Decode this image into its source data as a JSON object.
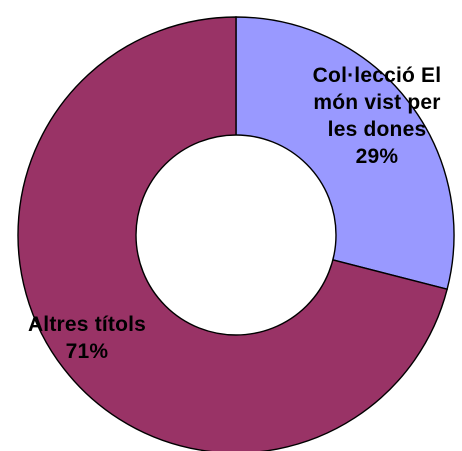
{
  "chart_data": {
    "type": "pie",
    "variant": "donut",
    "title": "",
    "slices": [
      {
        "label_lines": [
          "Col·lecció El",
          "món vist per",
          "les dones"
        ],
        "percent_label": "29%",
        "value": 29,
        "color": "#9999ff"
      },
      {
        "label_lines": [
          "Altres títols"
        ],
        "percent_label": "71%",
        "value": 71,
        "color": "#993366"
      }
    ],
    "legend": "none",
    "start": "top, clockwise"
  }
}
